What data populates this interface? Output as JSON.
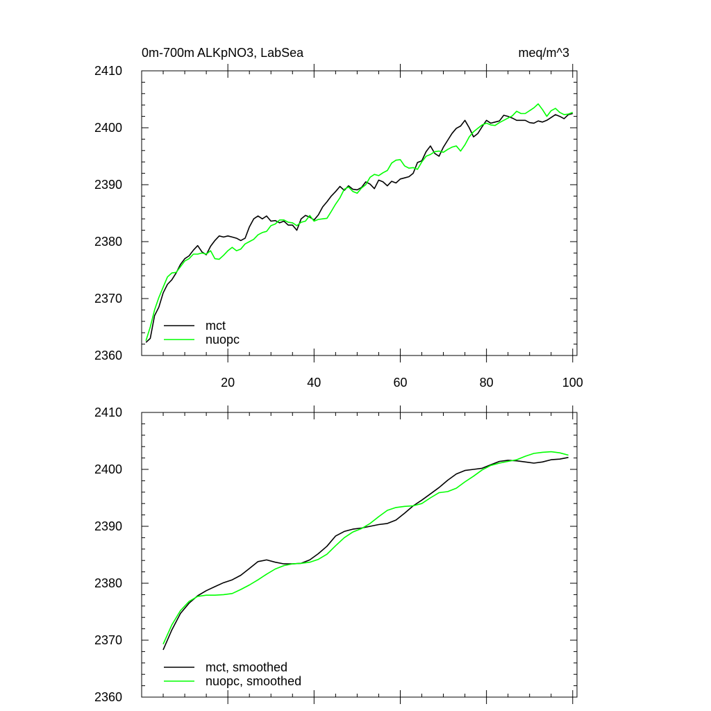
{
  "figure": {
    "title": "0m-700m ALKpNO3, LabSea",
    "units": "meq/m^3"
  },
  "chart_data": [
    {
      "type": "line",
      "title": "0m-700m ALKpNO3, LabSea",
      "units_label": "meq/m^3",
      "xlabel": "",
      "ylabel": "",
      "xlim": [
        0,
        101
      ],
      "ylim": [
        2360,
        2410
      ],
      "xticks": [
        20,
        40,
        60,
        80,
        100
      ],
      "yticks": [
        2360,
        2370,
        2380,
        2390,
        2400,
        2410
      ],
      "show_x_tick_labels": true,
      "legend_position": "bottom-left",
      "series": [
        {
          "name": "mct",
          "color": "#000000",
          "x": [
            1,
            2,
            3,
            4,
            5,
            6,
            7,
            8,
            9,
            10,
            11,
            12,
            13,
            14,
            15,
            16,
            17,
            18,
            19,
            20,
            21,
            22,
            23,
            24,
            25,
            26,
            27,
            28,
            29,
            30,
            31,
            32,
            33,
            34,
            35,
            36,
            37,
            38,
            39,
            40,
            41,
            42,
            43,
            44,
            45,
            46,
            47,
            48,
            49,
            50,
            51,
            52,
            53,
            54,
            55,
            56,
            57,
            58,
            59,
            60,
            61,
            62,
            63,
            64,
            65,
            66,
            67,
            68,
            69,
            70,
            71,
            72,
            73,
            74,
            75,
            76,
            77,
            78,
            79,
            80,
            81,
            82,
            83,
            84,
            85,
            86,
            87,
            88,
            89,
            90,
            91,
            92,
            93,
            94,
            95,
            96,
            97,
            98,
            99,
            100
          ],
          "values": [
            2362.3,
            2363,
            2367,
            2368.5,
            2371,
            2372.5,
            2373.3,
            2374.5,
            2376,
            2377,
            2377.5,
            2378.5,
            2379.3,
            2378.2,
            2377.7,
            2379.2,
            2380.2,
            2381,
            2380.8,
            2381,
            2380.8,
            2380.6,
            2380.2,
            2380.6,
            2382.6,
            2384,
            2384.5,
            2384,
            2384.5,
            2383.6,
            2383.7,
            2383.3,
            2383.6,
            2382.9,
            2382.9,
            2382,
            2384,
            2384.6,
            2384.3,
            2383.8,
            2384.7,
            2386.1,
            2387,
            2388,
            2388.8,
            2389.7,
            2389,
            2389.8,
            2389.2,
            2389.1,
            2389.5,
            2390.5,
            2390.1,
            2389.3,
            2390.8,
            2390.5,
            2389.8,
            2390.6,
            2390.3,
            2391,
            2391.2,
            2391.4,
            2392,
            2393.9,
            2394.2,
            2395.8,
            2396.8,
            2395.5,
            2395,
            2396.6,
            2397.8,
            2399,
            2399.9,
            2400.3,
            2401.3,
            2400,
            2398.4,
            2399,
            2400.2,
            2401.3,
            2400.8,
            2401,
            2401.2,
            2402.2,
            2402,
            2401.7,
            2401.3,
            2401.3,
            2401.3,
            2400.9,
            2400.8,
            2401.2,
            2401,
            2401.3,
            2401.8,
            2402.3,
            2402,
            2401.6,
            2402.3,
            2402.5
          ]
        },
        {
          "name": "nuopc",
          "color": "#00ff00",
          "x": [
            1,
            2,
            3,
            4,
            5,
            6,
            7,
            8,
            9,
            10,
            11,
            12,
            13,
            14,
            15,
            16,
            17,
            18,
            19,
            20,
            21,
            22,
            23,
            24,
            25,
            26,
            27,
            28,
            29,
            30,
            31,
            32,
            33,
            34,
            35,
            36,
            37,
            38,
            39,
            40,
            41,
            42,
            43,
            44,
            45,
            46,
            47,
            48,
            49,
            50,
            51,
            52,
            53,
            54,
            55,
            56,
            57,
            58,
            59,
            60,
            61,
            62,
            63,
            64,
            65,
            66,
            67,
            68,
            69,
            70,
            71,
            72,
            73,
            74,
            75,
            76,
            77,
            78,
            79,
            80,
            81,
            82,
            83,
            84,
            85,
            86,
            87,
            88,
            89,
            90,
            91,
            92,
            93,
            94,
            95,
            96,
            97,
            98,
            99,
            100
          ],
          "values": [
            2362.6,
            2365,
            2368,
            2370.2,
            2372,
            2373.8,
            2374.5,
            2374.6,
            2375.6,
            2376.6,
            2377,
            2377.8,
            2377.8,
            2378,
            2377.8,
            2378.4,
            2377,
            2376.9,
            2377.6,
            2378.4,
            2379,
            2378.4,
            2378.7,
            2379.6,
            2380,
            2380.4,
            2381.2,
            2381.6,
            2381.8,
            2382.8,
            2383.1,
            2383.8,
            2383.8,
            2383.4,
            2383.3,
            2382.8,
            2383.4,
            2383.6,
            2384.6,
            2383.6,
            2383.9,
            2384,
            2384.1,
            2385.3,
            2386.6,
            2387.7,
            2389.2,
            2389.6,
            2388.8,
            2388.5,
            2389.4,
            2390,
            2391.3,
            2391.8,
            2391.6,
            2392.1,
            2392.5,
            2393.8,
            2394.3,
            2394.4,
            2393.3,
            2392.9,
            2393,
            2392.7,
            2394,
            2395,
            2395.3,
            2395.8,
            2395.9,
            2395.7,
            2396.2,
            2396.6,
            2396.8,
            2395.9,
            2397,
            2398.4,
            2399.3,
            2399.9,
            2400.5,
            2400.8,
            2400.5,
            2400.4,
            2400.9,
            2401.3,
            2401.7,
            2402.1,
            2402.9,
            2402.5,
            2402.5,
            2403,
            2403.5,
            2404.2,
            2403.2,
            2402,
            2403,
            2403.4,
            2402.7,
            2402.3,
            2402.4,
            2402.7
          ]
        }
      ]
    },
    {
      "type": "line",
      "title": "",
      "xlabel": "",
      "ylabel": "",
      "xlim": [
        0,
        101
      ],
      "ylim": [
        2360,
        2410
      ],
      "xticks": [
        20,
        40,
        60,
        80,
        100
      ],
      "yticks": [
        2360,
        2370,
        2380,
        2390,
        2400,
        2410
      ],
      "show_x_tick_labels": false,
      "legend_position": "bottom-left",
      "series": [
        {
          "name": "mct, smoothed",
          "color": "#000000",
          "x": [
            5,
            7,
            9,
            11,
            13,
            15,
            17,
            19,
            21,
            23,
            25,
            27,
            29,
            31,
            33,
            35,
            37,
            39,
            41,
            43,
            45,
            47,
            49,
            51,
            53,
            55,
            57,
            59,
            61,
            63,
            65,
            67,
            69,
            71,
            73,
            75,
            77,
            79,
            81,
            83,
            85,
            87,
            89,
            91,
            93,
            95,
            97,
            99
          ],
          "values": [
            2368.3,
            2371.8,
            2374.7,
            2376.5,
            2377.8,
            2378.7,
            2379.4,
            2380.1,
            2380.6,
            2381.4,
            2382.6,
            2383.8,
            2384.1,
            2383.7,
            2383.4,
            2383.4,
            2383.5,
            2384.1,
            2385.2,
            2386.5,
            2388.3,
            2389.1,
            2389.5,
            2389.7,
            2390,
            2390.3,
            2390.5,
            2391.1,
            2392.3,
            2393.6,
            2394.6,
            2395.7,
            2396.8,
            2398.1,
            2399.2,
            2399.8,
            2400,
            2400.2,
            2400.8,
            2401.4,
            2401.6,
            2401.5,
            2401.3,
            2401.1,
            2401.3,
            2401.7,
            2401.8,
            2402.1
          ]
        },
        {
          "name": "nuopc, smoothed",
          "color": "#00ff00",
          "x": [
            5,
            7,
            9,
            11,
            13,
            15,
            17,
            19,
            21,
            23,
            25,
            27,
            29,
            31,
            33,
            35,
            37,
            39,
            41,
            43,
            45,
            47,
            49,
            51,
            53,
            55,
            57,
            59,
            61,
            63,
            65,
            67,
            69,
            71,
            73,
            75,
            77,
            79,
            81,
            83,
            85,
            87,
            89,
            91,
            93,
            95,
            97,
            99
          ],
          "values": [
            2369.3,
            2372.7,
            2375.2,
            2376.8,
            2377.7,
            2377.9,
            2377.9,
            2378,
            2378.2,
            2378.9,
            2379.7,
            2380.6,
            2381.6,
            2382.5,
            2383.1,
            2383.4,
            2383.5,
            2383.7,
            2384.2,
            2385.1,
            2386.6,
            2388,
            2389,
            2389.6,
            2390.5,
            2391.7,
            2392.8,
            2393.3,
            2393.5,
            2393.6,
            2394,
            2395,
            2395.9,
            2396.1,
            2396.7,
            2397.8,
            2398.8,
            2399.9,
            2400.7,
            2401.1,
            2401.4,
            2401.7,
            2402.3,
            2402.8,
            2403,
            2403.1,
            2402.9,
            2402.5
          ]
        }
      ]
    }
  ]
}
